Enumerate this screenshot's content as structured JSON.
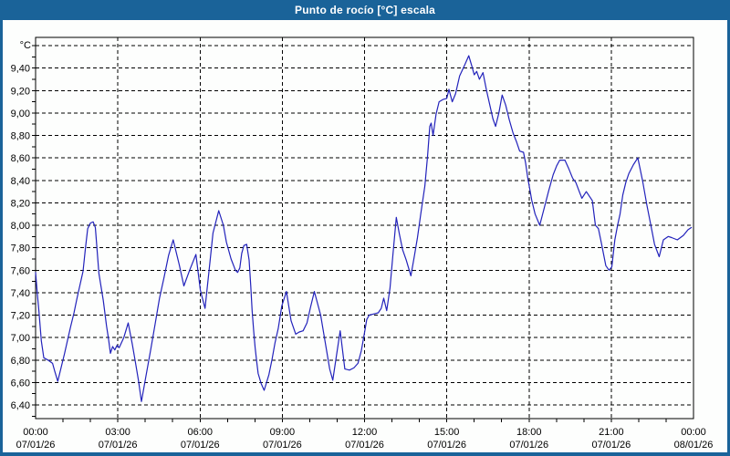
{
  "window": {
    "title": "Punto de rocío [°C] escala",
    "titlebar_color": "#1a6399",
    "border_color": "#1a6399",
    "plot_background": "#fdfefd"
  },
  "chart_data": {
    "type": "line",
    "title": "Punto de rocío [°C] escala",
    "xlabel": "",
    "ylabel": "°C",
    "grid": true,
    "legend": "none",
    "line_color": "#2222bb",
    "grid_color": "#000000",
    "y_axis": {
      "unit_label": "°C",
      "axis_min": 6.28,
      "axis_max": 9.67,
      "grid_min": 6.4,
      "grid_max": 9.6,
      "grid_step": 0.2,
      "minor_tick_step": 0.1,
      "tick_labels": [
        "9,40",
        "9,20",
        "9,00",
        "8,80",
        "8,60",
        "8,40",
        "8,20",
        "8,00",
        "7,80",
        "7,60",
        "7,40",
        "7,20",
        "7,00",
        "6,80",
        "6,60",
        "6,40"
      ],
      "tick_values": [
        9.4,
        9.2,
        9.0,
        8.8,
        8.6,
        8.4,
        8.2,
        8.0,
        7.8,
        7.6,
        7.4,
        7.2,
        7.0,
        6.8,
        6.6,
        6.4
      ]
    },
    "x_axis": {
      "range_hours": [
        0,
        24
      ],
      "minor_tick_every_hours": 1,
      "tick_hours": [
        0,
        3,
        6,
        9,
        12,
        15,
        18,
        21,
        24
      ],
      "tick_times": [
        "00:00",
        "03:00",
        "06:00",
        "09:00",
        "12:00",
        "15:00",
        "18:00",
        "21:00",
        "00:00"
      ],
      "tick_dates": [
        "07/01/26",
        "07/01/26",
        "07/01/26",
        "07/01/26",
        "07/01/26",
        "07/01/26",
        "07/01/26",
        "07/01/26",
        "08/01/26"
      ]
    },
    "series": [
      {
        "name": "Punto de rocío",
        "color": "#2222bb",
        "points": [
          [
            0.0,
            7.58
          ],
          [
            0.06,
            7.4
          ],
          [
            0.12,
            7.24
          ],
          [
            0.21,
            6.97
          ],
          [
            0.3,
            6.82
          ],
          [
            0.45,
            6.8
          ],
          [
            0.62,
            6.77
          ],
          [
            0.7,
            6.7
          ],
          [
            0.81,
            6.61
          ],
          [
            0.95,
            6.75
          ],
          [
            1.06,
            6.86
          ],
          [
            1.17,
            6.98
          ],
          [
            1.28,
            7.1
          ],
          [
            1.4,
            7.22
          ],
          [
            1.51,
            7.35
          ],
          [
            1.62,
            7.47
          ],
          [
            1.73,
            7.59
          ],
          [
            1.82,
            7.8
          ],
          [
            1.9,
            7.97
          ],
          [
            2.0,
            8.02
          ],
          [
            2.1,
            8.03
          ],
          [
            2.18,
            7.98
          ],
          [
            2.31,
            7.57
          ],
          [
            2.47,
            7.33
          ],
          [
            2.59,
            7.1
          ],
          [
            2.66,
            6.99
          ],
          [
            2.73,
            6.86
          ],
          [
            2.81,
            6.92
          ],
          [
            2.89,
            6.89
          ],
          [
            2.97,
            6.93
          ],
          [
            3.05,
            6.91
          ],
          [
            3.22,
            7.0
          ],
          [
            3.38,
            7.13
          ],
          [
            3.53,
            6.94
          ],
          [
            3.64,
            6.78
          ],
          [
            3.75,
            6.62
          ],
          [
            3.86,
            6.43
          ],
          [
            4.02,
            6.65
          ],
          [
            4.19,
            6.88
          ],
          [
            4.36,
            7.12
          ],
          [
            4.52,
            7.35
          ],
          [
            4.69,
            7.54
          ],
          [
            4.85,
            7.73
          ],
          [
            5.02,
            7.87
          ],
          [
            5.24,
            7.65
          ],
          [
            5.41,
            7.46
          ],
          [
            5.62,
            7.6
          ],
          [
            5.85,
            7.74
          ],
          [
            6.01,
            7.42
          ],
          [
            6.18,
            7.26
          ],
          [
            6.35,
            7.65
          ],
          [
            6.47,
            7.93
          ],
          [
            6.68,
            8.13
          ],
          [
            6.85,
            8.0
          ],
          [
            6.96,
            7.85
          ],
          [
            7.13,
            7.7
          ],
          [
            7.29,
            7.6
          ],
          [
            7.37,
            7.58
          ],
          [
            7.45,
            7.62
          ],
          [
            7.52,
            7.75
          ],
          [
            7.6,
            7.82
          ],
          [
            7.7,
            7.83
          ],
          [
            7.79,
            7.69
          ],
          [
            7.85,
            7.46
          ],
          [
            7.9,
            7.24
          ],
          [
            7.96,
            7.05
          ],
          [
            8.01,
            6.91
          ],
          [
            8.07,
            6.78
          ],
          [
            8.12,
            6.68
          ],
          [
            8.23,
            6.59
          ],
          [
            8.34,
            6.53
          ],
          [
            8.51,
            6.67
          ],
          [
            8.62,
            6.8
          ],
          [
            8.73,
            6.95
          ],
          [
            8.85,
            7.08
          ],
          [
            8.98,
            7.28
          ],
          [
            9.15,
            7.41
          ],
          [
            9.32,
            7.15
          ],
          [
            9.49,
            7.03
          ],
          [
            9.62,
            7.05
          ],
          [
            9.76,
            7.06
          ],
          [
            9.9,
            7.13
          ],
          [
            10.03,
            7.27
          ],
          [
            10.17,
            7.41
          ],
          [
            10.4,
            7.2
          ],
          [
            10.51,
            7.04
          ],
          [
            10.62,
            6.88
          ],
          [
            10.73,
            6.72
          ],
          [
            10.84,
            6.62
          ],
          [
            10.95,
            6.8
          ],
          [
            11.11,
            7.06
          ],
          [
            11.28,
            6.72
          ],
          [
            11.45,
            6.71
          ],
          [
            11.61,
            6.73
          ],
          [
            11.76,
            6.77
          ],
          [
            11.88,
            6.88
          ],
          [
            11.99,
            7.03
          ],
          [
            12.08,
            7.16
          ],
          [
            12.17,
            7.2
          ],
          [
            12.33,
            7.21
          ],
          [
            12.5,
            7.22
          ],
          [
            12.61,
            7.26
          ],
          [
            12.7,
            7.35
          ],
          [
            12.81,
            7.24
          ],
          [
            12.93,
            7.44
          ],
          [
            13.03,
            7.72
          ],
          [
            13.16,
            8.07
          ],
          [
            13.27,
            7.92
          ],
          [
            13.39,
            7.78
          ],
          [
            13.52,
            7.69
          ],
          [
            13.69,
            7.55
          ],
          [
            13.82,
            7.73
          ],
          [
            13.93,
            7.89
          ],
          [
            14.05,
            8.1
          ],
          [
            14.2,
            8.35
          ],
          [
            14.3,
            8.62
          ],
          [
            14.38,
            8.88
          ],
          [
            14.43,
            8.91
          ],
          [
            14.5,
            8.8
          ],
          [
            14.61,
            8.99
          ],
          [
            14.72,
            9.1
          ],
          [
            14.86,
            9.12
          ],
          [
            15.0,
            9.13
          ],
          [
            15.08,
            9.21
          ],
          [
            15.2,
            9.1
          ],
          [
            15.32,
            9.17
          ],
          [
            15.47,
            9.33
          ],
          [
            15.62,
            9.41
          ],
          [
            15.8,
            9.51
          ],
          [
            15.91,
            9.42
          ],
          [
            16.0,
            9.34
          ],
          [
            16.09,
            9.37
          ],
          [
            16.19,
            9.3
          ],
          [
            16.32,
            9.36
          ],
          [
            16.45,
            9.2
          ],
          [
            16.57,
            9.07
          ],
          [
            16.68,
            8.95
          ],
          [
            16.78,
            8.88
          ],
          [
            16.9,
            9.0
          ],
          [
            17.02,
            9.16
          ],
          [
            17.15,
            9.07
          ],
          [
            17.28,
            8.94
          ],
          [
            17.42,
            8.82
          ],
          [
            17.55,
            8.74
          ],
          [
            17.66,
            8.66
          ],
          [
            17.8,
            8.65
          ],
          [
            17.88,
            8.55
          ],
          [
            17.95,
            8.43
          ],
          [
            18.02,
            8.33
          ],
          [
            18.1,
            8.22
          ],
          [
            18.22,
            8.1
          ],
          [
            18.39,
            8.0
          ],
          [
            18.55,
            8.15
          ],
          [
            18.72,
            8.31
          ],
          [
            18.88,
            8.45
          ],
          [
            19.01,
            8.53
          ],
          [
            19.12,
            8.58
          ],
          [
            19.31,
            8.58
          ],
          [
            19.44,
            8.51
          ],
          [
            19.59,
            8.42
          ],
          [
            19.71,
            8.38
          ],
          [
            19.85,
            8.29
          ],
          [
            19.93,
            8.24
          ],
          [
            20.09,
            8.3
          ],
          [
            20.31,
            8.22
          ],
          [
            20.42,
            8.0
          ],
          [
            20.53,
            7.97
          ],
          [
            20.64,
            7.84
          ],
          [
            20.8,
            7.64
          ],
          [
            20.92,
            7.6
          ],
          [
            21.02,
            7.63
          ],
          [
            21.13,
            7.87
          ],
          [
            21.23,
            8.0
          ],
          [
            21.32,
            8.1
          ],
          [
            21.42,
            8.27
          ],
          [
            21.53,
            8.38
          ],
          [
            21.64,
            8.46
          ],
          [
            21.81,
            8.54
          ],
          [
            21.97,
            8.6
          ],
          [
            22.14,
            8.4
          ],
          [
            22.3,
            8.18
          ],
          [
            22.47,
            7.97
          ],
          [
            22.58,
            7.83
          ],
          [
            22.75,
            7.72
          ],
          [
            22.9,
            7.87
          ],
          [
            23.08,
            7.9
          ],
          [
            23.2,
            7.89
          ],
          [
            23.41,
            7.87
          ],
          [
            23.63,
            7.91
          ],
          [
            23.8,
            7.96
          ],
          [
            23.92,
            7.98
          ]
        ]
      }
    ]
  }
}
